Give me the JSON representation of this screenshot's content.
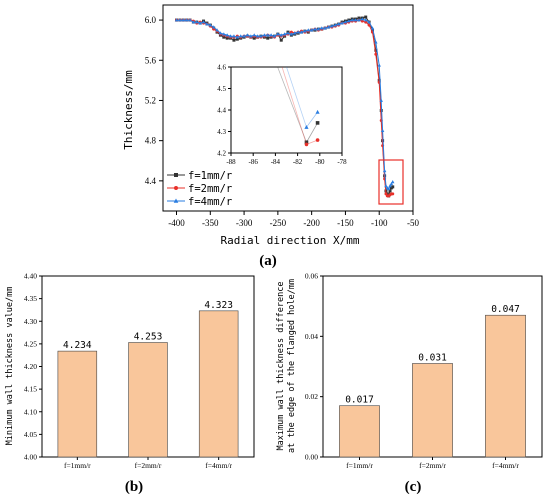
{
  "chart_data": [
    {
      "panel": "(a)",
      "type": "line",
      "xlabel": "Radial direction X/mm",
      "ylabel": "Thickness/mm",
      "xlim": [
        -420,
        -50
      ],
      "ylim": [
        4.1,
        6.15
      ],
      "xticks": [
        -400,
        -350,
        -300,
        -250,
        -200,
        -150,
        -100,
        -50
      ],
      "yticks": [
        4.4,
        4.8,
        5.2,
        5.6,
        6.0
      ],
      "legend_position": "left",
      "series": [
        {
          "name": "f=1mm/r",
          "color": "#333333",
          "marker": "square",
          "x": [
            -400,
            -395,
            -390,
            -385,
            -380,
            -375,
            -370,
            -365,
            -360,
            -355,
            -350,
            -345,
            -340,
            -335,
            -330,
            -325,
            -320,
            -315,
            -310,
            -305,
            -300,
            -295,
            -290,
            -285,
            -280,
            -275,
            -270,
            -265,
            -260,
            -255,
            -250,
            -245,
            -240,
            -235,
            -230,
            -225,
            -220,
            -215,
            -210,
            -205,
            -200,
            -195,
            -190,
            -185,
            -180,
            -175,
            -170,
            -165,
            -160,
            -155,
            -150,
            -145,
            -140,
            -135,
            -130,
            -125,
            -120,
            -115,
            -110,
            -105,
            -100,
            -97,
            -95,
            -92,
            -90,
            -88,
            -86,
            -84,
            -82,
            -80
          ],
          "y": [
            6.0,
            6.0,
            6.0,
            6.0,
            6.0,
            5.98,
            5.98,
            5.97,
            5.99,
            5.97,
            5.95,
            5.92,
            5.88,
            5.85,
            5.83,
            5.82,
            5.82,
            5.8,
            5.81,
            5.82,
            5.83,
            5.84,
            5.83,
            5.82,
            5.83,
            5.84,
            5.83,
            5.82,
            5.83,
            5.84,
            5.86,
            5.8,
            5.84,
            5.88,
            5.85,
            5.86,
            5.87,
            5.88,
            5.89,
            5.88,
            5.9,
            5.9,
            5.91,
            5.91,
            5.92,
            5.93,
            5.94,
            5.95,
            5.96,
            5.98,
            5.99,
            6.0,
            6.01,
            6.01,
            6.02,
            6.02,
            6.03,
            5.98,
            5.9,
            5.7,
            5.4,
            5.1,
            4.8,
            4.45,
            4.3,
            4.27,
            4.25,
            4.3,
            4.33,
            4.34
          ]
        },
        {
          "name": "f=2mm/r",
          "color": "#e8302a",
          "marker": "circle",
          "x": [
            -400,
            -395,
            -390,
            -385,
            -380,
            -375,
            -370,
            -365,
            -360,
            -355,
            -350,
            -345,
            -340,
            -335,
            -330,
            -325,
            -320,
            -315,
            -310,
            -305,
            -300,
            -295,
            -290,
            -285,
            -280,
            -275,
            -270,
            -265,
            -260,
            -255,
            -250,
            -245,
            -240,
            -235,
            -230,
            -225,
            -220,
            -215,
            -210,
            -205,
            -200,
            -195,
            -190,
            -185,
            -180,
            -175,
            -170,
            -165,
            -160,
            -155,
            -150,
            -145,
            -140,
            -135,
            -130,
            -125,
            -120,
            -115,
            -110,
            -105,
            -100,
            -97,
            -95,
            -92,
            -90,
            -88,
            -86,
            -84,
            -82,
            -80
          ],
          "y": [
            6.0,
            6.0,
            6.0,
            6.0,
            6.0,
            5.99,
            5.97,
            5.98,
            5.97,
            5.96,
            5.94,
            5.91,
            5.89,
            5.86,
            5.85,
            5.84,
            5.83,
            5.83,
            5.84,
            5.83,
            5.84,
            5.84,
            5.83,
            5.84,
            5.83,
            5.83,
            5.84,
            5.85,
            5.84,
            5.83,
            5.85,
            5.84,
            5.85,
            5.86,
            5.88,
            5.87,
            5.88,
            5.89,
            5.88,
            5.89,
            5.9,
            5.91,
            5.9,
            5.91,
            5.92,
            5.93,
            5.93,
            5.94,
            5.95,
            5.97,
            5.97,
            5.98,
            5.99,
            5.99,
            6.0,
            5.99,
            5.98,
            5.95,
            5.88,
            5.66,
            5.38,
            5.0,
            4.75,
            4.42,
            4.27,
            4.25,
            4.25,
            4.26,
            4.27,
            4.27
          ]
        },
        {
          "name": "f=4mm/r",
          "color": "#2a7de1",
          "marker": "triangle",
          "x": [
            -400,
            -395,
            -390,
            -385,
            -380,
            -375,
            -370,
            -365,
            -360,
            -355,
            -350,
            -345,
            -340,
            -335,
            -330,
            -325,
            -320,
            -315,
            -310,
            -305,
            -300,
            -295,
            -290,
            -285,
            -280,
            -275,
            -270,
            -265,
            -260,
            -255,
            -250,
            -245,
            -240,
            -235,
            -230,
            -225,
            -220,
            -215,
            -210,
            -205,
            -200,
            -195,
            -190,
            -185,
            -180,
            -175,
            -170,
            -165,
            -160,
            -155,
            -150,
            -145,
            -140,
            -135,
            -130,
            -125,
            -120,
            -115,
            -110,
            -105,
            -100,
            -97,
            -95,
            -92,
            -90,
            -88,
            -86,
            -84,
            -82,
            -80
          ],
          "y": [
            6.0,
            6.0,
            6.0,
            6.0,
            6.0,
            5.98,
            5.98,
            5.97,
            5.98,
            5.96,
            5.95,
            5.93,
            5.9,
            5.87,
            5.86,
            5.85,
            5.84,
            5.84,
            5.83,
            5.84,
            5.84,
            5.85,
            5.84,
            5.85,
            5.84,
            5.84,
            5.85,
            5.85,
            5.85,
            5.84,
            5.86,
            5.85,
            5.86,
            5.87,
            5.86,
            5.87,
            5.88,
            5.88,
            5.89,
            5.9,
            5.9,
            5.91,
            5.91,
            5.92,
            5.92,
            5.93,
            5.94,
            5.95,
            5.96,
            5.97,
            5.98,
            5.99,
            6.0,
            6.0,
            6.0,
            6.01,
            6.0,
            5.98,
            5.92,
            5.78,
            5.55,
            5.2,
            4.9,
            4.5,
            4.35,
            4.33,
            4.32,
            4.35,
            4.37,
            4.39
          ]
        }
      ],
      "inset": {
        "xlim": [
          -88,
          -78
        ],
        "ylim": [
          4.2,
          4.6
        ],
        "xticks": [
          -88,
          -86,
          -84,
          -82,
          -80,
          -78
        ],
        "yticks": [
          4.2,
          4.3,
          4.4,
          4.5,
          4.6
        ],
        "series": [
          {
            "name": "f=1mm/r",
            "x": [
              -81.2,
              -80.2
            ],
            "y": [
              4.25,
              4.34
            ]
          },
          {
            "name": "f=2mm/r",
            "x": [
              -81.2,
              -80.2
            ],
            "y": [
              4.24,
              4.26
            ]
          },
          {
            "name": "f=4mm/r",
            "x": [
              -81.2,
              -80.2
            ],
            "y": [
              4.32,
              4.39
            ]
          }
        ]
      }
    },
    {
      "panel": "(b)",
      "type": "bar",
      "ylabel": "Minimum wall thickness value/mm",
      "categories": [
        "f=1mm/r",
        "f=2mm/r",
        "f=4mm/r"
      ],
      "values": [
        4.234,
        4.253,
        4.323
      ],
      "value_labels": [
        "4.234",
        "4.253",
        "4.323"
      ],
      "ylim": [
        4.0,
        4.4
      ],
      "yticks": [
        "4.00",
        "4.05",
        "4.10",
        "4.15",
        "4.20",
        "4.25",
        "4.30",
        "4.35",
        "4.40"
      ],
      "bar_color": "#f9c69b"
    },
    {
      "panel": "(c)",
      "type": "bar",
      "ylabel_line1": "Maximum wall thickness difference",
      "ylabel_line2": "at the edge of the flanged hole/mm",
      "categories": [
        "f=1mm/r",
        "f=2mm/r",
        "f=4mm/r"
      ],
      "values": [
        0.017,
        0.031,
        0.047
      ],
      "value_labels": [
        "0.017",
        "0.031",
        "0.047"
      ],
      "ylim": [
        0,
        0.06
      ],
      "yticks": [
        "0.00",
        "0.02",
        "0.04",
        "0.06"
      ],
      "bar_color": "#f9c69b"
    }
  ]
}
